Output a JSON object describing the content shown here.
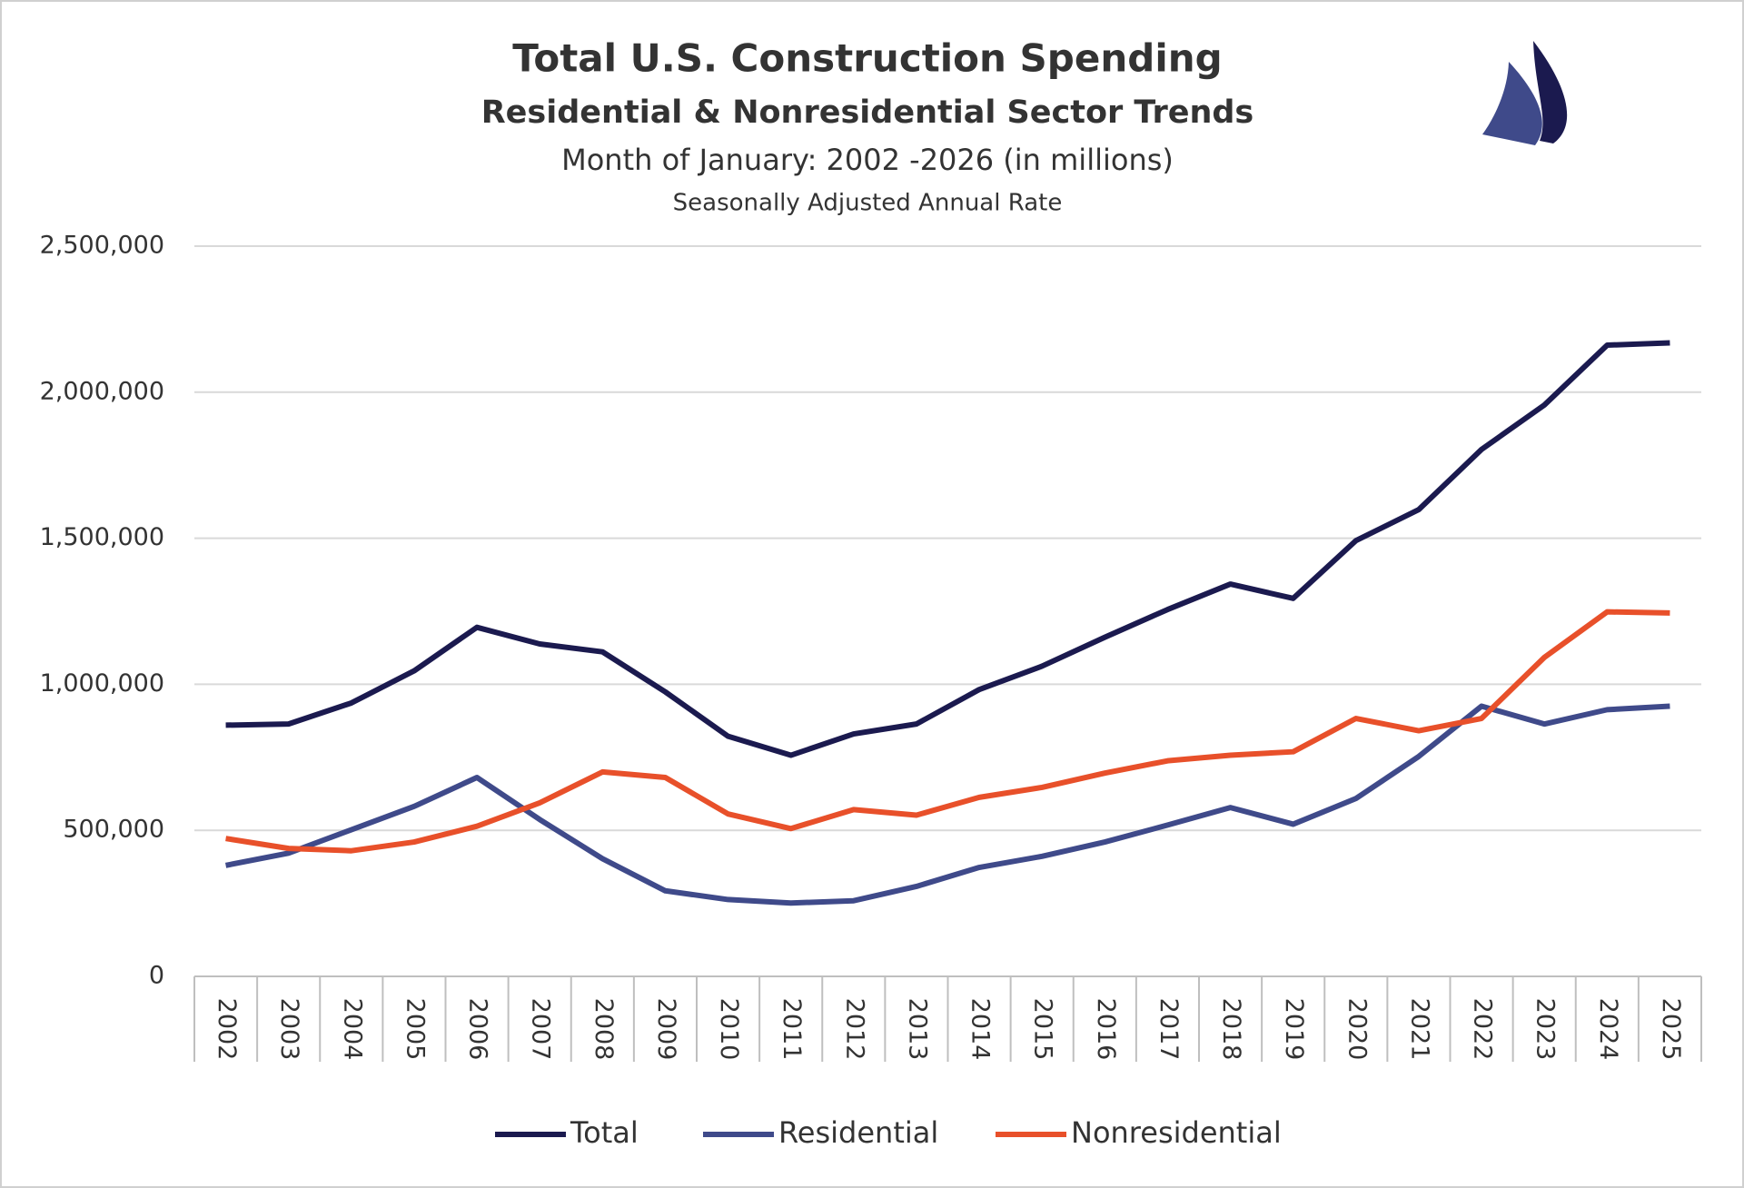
{
  "chart_data": {
    "type": "line",
    "title": "Total U.S. Construction Spending",
    "subtitle": "Residential & Nonresidential Sector Trends",
    "description": "Month of January: 2002 -2026 (in millions)",
    "note": "Seasonally Adjusted Annual Rate",
    "categories": [
      "2002",
      "2003",
      "2004",
      "2005",
      "2006",
      "2007",
      "2008",
      "2009",
      "2010",
      "2011",
      "2012",
      "2013",
      "2014",
      "2015",
      "2016",
      "2017",
      "2018",
      "2019",
      "2020",
      "2021",
      "2022",
      "2023",
      "2024",
      "2025"
    ],
    "series": [
      {
        "name": "Total",
        "color": "#1b1a4f",
        "values": [
          860000,
          864000,
          936000,
          1046000,
          1195000,
          1138000,
          1111000,
          974000,
          822000,
          757000,
          830000,
          864000,
          982000,
          1062000,
          1161000,
          1256000,
          1343000,
          1294000,
          1492000,
          1598000,
          1804000,
          1956000,
          2161000,
          2169000
        ]
      },
      {
        "name": "Residential",
        "color": "#3f4a8a",
        "values": [
          380000,
          422000,
          502000,
          582000,
          681000,
          537000,
          403000,
          293000,
          263000,
          251000,
          259000,
          308000,
          373000,
          411000,
          460000,
          518000,
          578000,
          521000,
          609000,
          753000,
          925000,
          864000,
          913000,
          925000
        ]
      },
      {
        "name": "Nonresidential",
        "color": "#e8502a",
        "values": [
          472000,
          438000,
          430000,
          460000,
          514000,
          594000,
          700000,
          681000,
          556000,
          506000,
          571000,
          552000,
          613000,
          647000,
          696000,
          738000,
          757000,
          769000,
          883000,
          841000,
          883000,
          1092000,
          1248000,
          1244000
        ]
      }
    ],
    "ylim": [
      0,
      2500000
    ],
    "yticks": [
      0,
      {
        "value": 500000,
        "label": "500,000"
      },
      {
        "value": 1000000,
        "label": "1,000,000"
      },
      {
        "value": 1500000,
        "label": "1,500,000"
      },
      {
        "value": 2000000,
        "label": "2,000,000"
      },
      {
        "value": 2500000,
        "label": "2,500,000"
      }
    ],
    "grid": true,
    "legend": "bottom"
  }
}
